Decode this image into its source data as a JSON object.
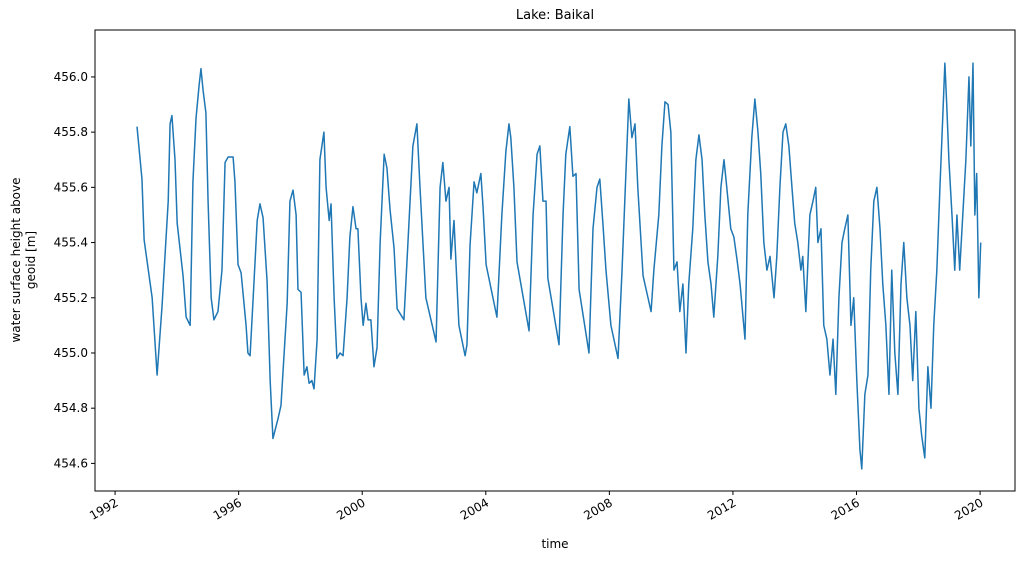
{
  "chart_data": {
    "type": "line",
    "title": "Lake: Baikal",
    "xlabel": "time",
    "ylabel": [
      "water surface height above",
      "geoid [m]"
    ],
    "xlim": [
      1991.35,
      2021.13
    ],
    "xticks": [
      1992,
      1996,
      2000,
      2004,
      2008,
      2012,
      2016,
      2020
    ],
    "ylim": [
      454.5,
      456.17
    ],
    "yticks": [
      454.6,
      454.8,
      {
        "value": 455,
        "label": "455.0"
      },
      455.2,
      455.4,
      455.6,
      455.8,
      {
        "value": 456,
        "label": "456.0"
      }
    ],
    "x": [
      1992.71,
      1992.87,
      1992.94,
      1993.2,
      1993.36,
      1993.52,
      1993.72,
      1993.78,
      1993.84,
      1993.94,
      1994.01,
      1994.2,
      1994.3,
      1994.43,
      1994.52,
      1994.62,
      1994.72,
      1994.78,
      1994.85,
      1994.94,
      1995.01,
      1995.11,
      1995.2,
      1995.33,
      1995.46,
      1995.56,
      1995.66,
      1995.82,
      1995.88,
      1995.98,
      1996.08,
      1996.24,
      1996.3,
      1996.37,
      1996.47,
      1996.6,
      1996.69,
      1996.79,
      1996.92,
      1997.02,
      1997.11,
      1997.27,
      1997.37,
      1997.5,
      1997.57,
      1997.66,
      1997.76,
      1997.86,
      1997.92,
      1998.02,
      1998.12,
      1998.21,
      1998.28,
      1998.37,
      1998.44,
      1998.54,
      1998.63,
      1998.76,
      1998.83,
      1998.93,
      1998.99,
      1999.09,
      1999.18,
      1999.28,
      1999.38,
      1999.51,
      1999.6,
      1999.7,
      1999.8,
      1999.86,
      1999.96,
      2000.03,
      2000.12,
      2000.19,
      2000.28,
      2000.38,
      2000.48,
      2000.58,
      2000.71,
      2000.8,
      2000.9,
      2001.03,
      2001.13,
      2001.35,
      2001.48,
      2001.64,
      2001.77,
      2001.87,
      2002.06,
      2002.39,
      2002.52,
      2002.61,
      2002.71,
      2002.81,
      2002.87,
      2002.97,
      2003.13,
      2003.33,
      2003.39,
      2003.49,
      2003.62,
      2003.71,
      2003.84,
      2003.91,
      2004.01,
      2004.36,
      2004.52,
      2004.65,
      2004.75,
      2004.81,
      2004.91,
      2005.01,
      2005.4,
      2005.53,
      2005.66,
      2005.75,
      2005.85,
      2005.95,
      2006.01,
      2006.37,
      2006.5,
      2006.59,
      2006.72,
      2006.82,
      2006.92,
      2007.02,
      2007.34,
      2007.47,
      2007.6,
      2007.69,
      2007.79,
      2007.89,
      2008.05,
      2008.28,
      2008.41,
      2008.57,
      2008.63,
      2008.73,
      2008.83,
      2008.92,
      2009.09,
      2009.25,
      2009.35,
      2009.44,
      2009.6,
      2009.7,
      2009.8,
      2009.9,
      2009.99,
      2010.09,
      2010.19,
      2010.28,
      2010.38,
      2010.48,
      2010.57,
      2010.7,
      2010.8,
      2010.9,
      2011.0,
      2011.09,
      2011.19,
      2011.29,
      2011.38,
      2011.51,
      2011.61,
      2011.71,
      2011.8,
      2011.93,
      2012.03,
      2012.13,
      2012.23,
      2012.39,
      2012.48,
      2012.61,
      2012.71,
      2012.81,
      2012.9,
      2013.0,
      2013.1,
      2013.2,
      2013.33,
      2013.42,
      2013.52,
      2013.62,
      2013.71,
      2013.81,
      2013.91,
      2014.0,
      2014.1,
      2014.2,
      2014.26,
      2014.36,
      2014.49,
      2014.59,
      2014.68,
      2014.75,
      2014.85,
      2014.94,
      2015.04,
      2015.14,
      2015.24,
      2015.33,
      2015.43,
      2015.53,
      2015.62,
      2015.72,
      2015.82,
      2015.91,
      2016.01,
      2016.11,
      2016.17,
      2016.27,
      2016.37,
      2016.46,
      2016.56,
      2016.66,
      2016.76,
      2016.85,
      2016.95,
      2017.05,
      2017.14,
      2017.24,
      2017.34,
      2017.44,
      2017.53,
      2017.63,
      2017.73,
      2017.82,
      2017.92,
      2018.02,
      2018.11,
      2018.21,
      2018.31,
      2018.41,
      2018.5,
      2018.6,
      2018.7,
      2018.79,
      2018.86,
      2018.92,
      2018.99,
      2019.09,
      2019.18,
      2019.25,
      2019.34,
      2019.44,
      2019.54,
      2019.64,
      2019.7,
      2019.77,
      2019.83,
      2019.89,
      2019.96,
      2020.02
    ],
    "series": [
      {
        "color": "#1f77b4",
        "values": [
          455.82,
          455.63,
          455.41,
          455.2,
          454.92,
          455.17,
          455.55,
          455.83,
          455.86,
          455.7,
          455.47,
          455.28,
          455.13,
          455.1,
          455.62,
          455.85,
          455.97,
          456.03,
          455.95,
          455.87,
          455.55,
          455.2,
          455.12,
          455.15,
          455.3,
          455.69,
          455.71,
          455.71,
          455.62,
          455.32,
          455.29,
          455.1,
          455.0,
          454.99,
          455.2,
          455.48,
          455.54,
          455.49,
          455.26,
          454.9,
          454.69,
          454.76,
          454.81,
          455.05,
          455.18,
          455.55,
          455.59,
          455.5,
          455.23,
          455.22,
          454.92,
          454.95,
          454.89,
          454.9,
          454.87,
          455.05,
          455.7,
          455.8,
          455.6,
          455.48,
          455.54,
          455.2,
          454.98,
          455.0,
          454.99,
          455.2,
          455.42,
          455.53,
          455.45,
          455.45,
          455.2,
          455.1,
          455.18,
          455.12,
          455.12,
          454.95,
          455.02,
          455.4,
          455.72,
          455.67,
          455.52,
          455.38,
          455.16,
          455.12,
          455.4,
          455.75,
          455.83,
          455.6,
          455.2,
          455.04,
          455.6,
          455.69,
          455.55,
          455.6,
          455.34,
          455.48,
          455.1,
          454.99,
          455.03,
          455.39,
          455.62,
          455.58,
          455.65,
          455.53,
          455.32,
          455.13,
          455.5,
          455.73,
          455.83,
          455.78,
          455.6,
          455.33,
          455.08,
          455.5,
          455.72,
          455.75,
          455.55,
          455.55,
          455.27,
          455.03,
          455.5,
          455.72,
          455.82,
          455.64,
          455.65,
          455.23,
          455.0,
          455.45,
          455.6,
          455.63,
          455.47,
          455.3,
          455.1,
          454.98,
          455.3,
          455.75,
          455.92,
          455.78,
          455.83,
          455.6,
          455.28,
          455.2,
          455.15,
          455.3,
          455.5,
          455.75,
          455.91,
          455.9,
          455.8,
          455.3,
          455.33,
          455.15,
          455.25,
          455.0,
          455.25,
          455.45,
          455.7,
          455.79,
          455.7,
          455.5,
          455.33,
          455.25,
          455.13,
          455.35,
          455.6,
          455.7,
          455.6,
          455.45,
          455.42,
          455.34,
          455.25,
          455.05,
          455.5,
          455.78,
          455.92,
          455.8,
          455.65,
          455.4,
          455.3,
          455.35,
          455.2,
          455.35,
          455.6,
          455.8,
          455.83,
          455.75,
          455.6,
          455.47,
          455.4,
          455.3,
          455.35,
          455.15,
          455.5,
          455.55,
          455.6,
          455.4,
          455.45,
          455.1,
          455.05,
          454.92,
          455.05,
          454.85,
          455.2,
          455.4,
          455.45,
          455.5,
          455.1,
          455.2,
          454.9,
          454.65,
          454.58,
          454.85,
          454.92,
          455.3,
          455.55,
          455.6,
          455.45,
          455.25,
          455.1,
          454.85,
          455.3,
          455.0,
          454.85,
          455.25,
          455.4,
          455.2,
          455.1,
          454.9,
          455.15,
          454.8,
          454.7,
          454.62,
          454.95,
          454.8,
          455.1,
          455.3,
          455.6,
          455.85,
          456.05,
          455.9,
          455.7,
          455.5,
          455.3,
          455.5,
          455.3,
          455.5,
          455.7,
          456.0,
          455.75,
          456.05,
          455.5,
          455.65,
          455.2,
          455.4
        ]
      }
    ]
  }
}
